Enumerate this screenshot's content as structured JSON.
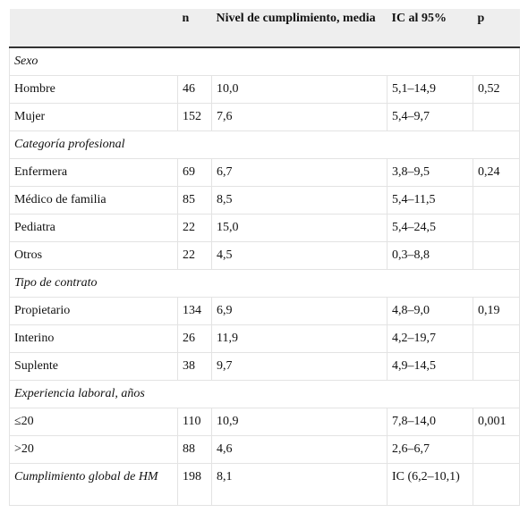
{
  "table": {
    "header": [
      "n",
      "Nivel de cumplimiento, media",
      "IC al 95%",
      "p"
    ],
    "sections": [
      {
        "title": "Sexo",
        "rows": [
          {
            "label": "Hombre",
            "n": 46,
            "media": "10,0",
            "ic": "5,1–14,9",
            "p": "0,52"
          },
          {
            "label": "Mujer",
            "n": 152,
            "media": "7,6",
            "ic": "5,4–9,7"
          }
        ]
      },
      {
        "title": "Categoría profesional",
        "rows": [
          {
            "label": "Enfermera",
            "n": 69,
            "media": "6,7",
            "ic": "3,8–9,5",
            "p": "0,24"
          },
          {
            "label": "Médico de familia",
            "n": 85,
            "media": "8,5",
            "ic": "5,4–11,5"
          },
          {
            "label": "Pediatra",
            "n": 22,
            "media": "15,0",
            "ic": "5,4–24,5"
          },
          {
            "label": "Otros",
            "n": 22,
            "media": "4,5",
            "ic": "0,3–8,8"
          }
        ]
      },
      {
        "title": "Tipo de contrato",
        "rows": [
          {
            "label": "Propietario",
            "n": 134,
            "media": "6,9",
            "ic": "4,8–9,0",
            "p": "0,19"
          },
          {
            "label": "Interino",
            "n": 26,
            "media": "11,9",
            "ic": "4,2–19,7"
          },
          {
            "label": "Suplente",
            "n": 38,
            "media": "9,7",
            "ic": "4,9–14,5"
          }
        ]
      },
      {
        "title": "Experiencia laboral, años",
        "rows": [
          {
            "label": "≤20",
            "n": 110,
            "media": "10,9",
            "ic": "7,8–14,0",
            "p": "0,001"
          },
          {
            "label": ">20",
            "n": 88,
            "media": "4,6",
            "ic": "2,6–6,7"
          }
        ]
      }
    ],
    "total": {
      "label": "Cumplimiento global de HM",
      "n": 198,
      "media": "8,1",
      "ic": "IC (6,2–10,1)"
    }
  }
}
